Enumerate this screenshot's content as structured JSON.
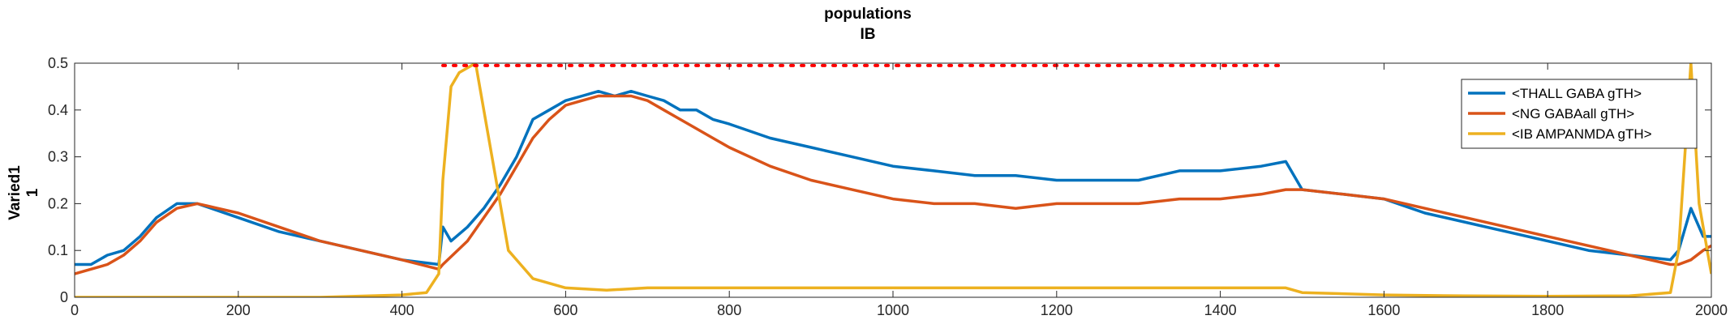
{
  "chart_data": {
    "type": "line",
    "title": [
      "populations",
      "IB"
    ],
    "ylabel": [
      "Varied1",
      "1"
    ],
    "xlabel": "",
    "xlim": [
      0,
      2000
    ],
    "ylim": [
      0,
      0.5
    ],
    "xticks": [
      0,
      200,
      400,
      600,
      800,
      1000,
      1200,
      1400,
      1600,
      1800,
      2000
    ],
    "xtick_labels": [
      "0",
      "200",
      "400",
      "600",
      "800",
      "1000",
      "1200",
      "1400",
      "1600",
      "1800",
      "2000"
    ],
    "yticks": [
      0,
      0.1,
      0.2,
      0.3,
      0.4,
      0.5
    ],
    "ytick_labels": [
      "0",
      "0.1",
      "0.2",
      "0.3",
      "0.4",
      "0.5"
    ],
    "grid": false,
    "legend_position": "top-right",
    "stimulus_marker": {
      "x_start": 450,
      "x_end": 1480,
      "y": 0.495,
      "color": "#FF0000",
      "style": "dotted"
    },
    "series": [
      {
        "name": "<THALL GABA gTH>",
        "color": "#0072BD",
        "x": [
          0,
          20,
          40,
          60,
          80,
          100,
          125,
          150,
          200,
          250,
          300,
          350,
          400,
          445,
          450,
          460,
          480,
          500,
          520,
          540,
          560,
          580,
          600,
          620,
          640,
          660,
          680,
          700,
          720,
          740,
          760,
          780,
          800,
          850,
          900,
          950,
          1000,
          1050,
          1100,
          1150,
          1200,
          1250,
          1300,
          1350,
          1400,
          1450,
          1480,
          1500,
          1550,
          1600,
          1650,
          1700,
          1750,
          1800,
          1850,
          1900,
          1950,
          1960,
          1975,
          1985,
          1990,
          2000
        ],
        "y": [
          0.07,
          0.07,
          0.09,
          0.1,
          0.13,
          0.17,
          0.2,
          0.2,
          0.17,
          0.14,
          0.12,
          0.1,
          0.08,
          0.07,
          0.15,
          0.12,
          0.15,
          0.19,
          0.24,
          0.3,
          0.38,
          0.4,
          0.42,
          0.43,
          0.44,
          0.43,
          0.44,
          0.43,
          0.42,
          0.4,
          0.4,
          0.38,
          0.37,
          0.34,
          0.32,
          0.3,
          0.28,
          0.27,
          0.26,
          0.26,
          0.25,
          0.25,
          0.25,
          0.27,
          0.27,
          0.28,
          0.29,
          0.23,
          0.22,
          0.21,
          0.18,
          0.16,
          0.14,
          0.12,
          0.1,
          0.09,
          0.08,
          0.1,
          0.19,
          0.15,
          0.13,
          0.13
        ]
      },
      {
        "name": "<NG GABAall gTH>",
        "color": "#D95319",
        "x": [
          0,
          20,
          40,
          60,
          80,
          100,
          125,
          150,
          200,
          250,
          300,
          350,
          400,
          445,
          450,
          480,
          500,
          520,
          540,
          560,
          580,
          600,
          620,
          640,
          660,
          680,
          700,
          720,
          740,
          760,
          780,
          800,
          850,
          900,
          950,
          1000,
          1050,
          1100,
          1150,
          1200,
          1250,
          1300,
          1350,
          1400,
          1450,
          1480,
          1500,
          1550,
          1600,
          1650,
          1700,
          1750,
          1800,
          1850,
          1900,
          1950,
          1960,
          1975,
          1990,
          2000
        ],
        "y": [
          0.05,
          0.06,
          0.07,
          0.09,
          0.12,
          0.16,
          0.19,
          0.2,
          0.18,
          0.15,
          0.12,
          0.1,
          0.08,
          0.06,
          0.07,
          0.12,
          0.17,
          0.22,
          0.28,
          0.34,
          0.38,
          0.41,
          0.42,
          0.43,
          0.43,
          0.43,
          0.42,
          0.4,
          0.38,
          0.36,
          0.34,
          0.32,
          0.28,
          0.25,
          0.23,
          0.21,
          0.2,
          0.2,
          0.19,
          0.2,
          0.2,
          0.2,
          0.21,
          0.21,
          0.22,
          0.23,
          0.23,
          0.22,
          0.21,
          0.19,
          0.17,
          0.15,
          0.13,
          0.11,
          0.09,
          0.07,
          0.07,
          0.08,
          0.1,
          0.11
        ]
      },
      {
        "name": "<IB AMPANMDA gTH>",
        "color": "#EDB120",
        "x": [
          0,
          100,
          200,
          300,
          400,
          430,
          445,
          450,
          460,
          470,
          490,
          510,
          530,
          560,
          600,
          650,
          700,
          750,
          800,
          900,
          1000,
          1100,
          1200,
          1300,
          1400,
          1460,
          1480,
          1500,
          1600,
          1700,
          1800,
          1900,
          1950,
          1960,
          1975,
          1985,
          2000
        ],
        "y": [
          0,
          0,
          0,
          0,
          0.005,
          0.01,
          0.05,
          0.25,
          0.45,
          0.48,
          0.5,
          0.3,
          0.1,
          0.04,
          0.02,
          0.015,
          0.02,
          0.02,
          0.02,
          0.02,
          0.02,
          0.02,
          0.02,
          0.02,
          0.02,
          0.02,
          0.02,
          0.01,
          0.005,
          0.003,
          0.002,
          0.003,
          0.01,
          0.1,
          0.5,
          0.2,
          0.05
        ]
      }
    ]
  }
}
